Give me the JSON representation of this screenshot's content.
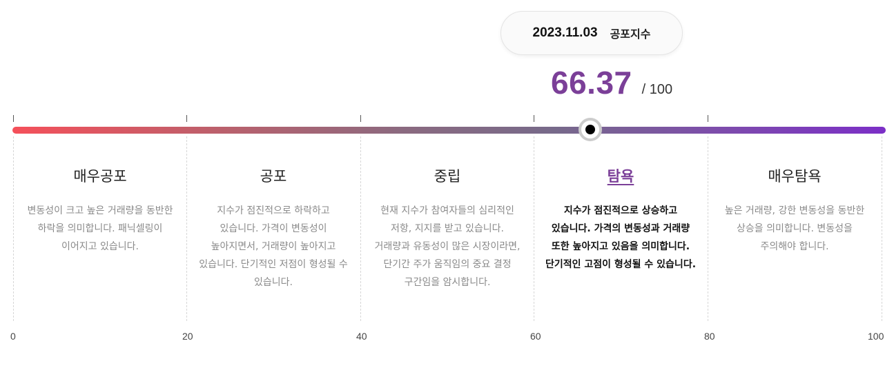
{
  "tooltip": {
    "date": "2023.11.03",
    "label": "공포지수"
  },
  "gauge": {
    "value": 66.37,
    "value_text": "66.37",
    "max_text": "/ 100",
    "marker_color": "#000000",
    "value_color": "#7b3f98",
    "gradient_start": "#f5505a",
    "gradient_end": "#7c2fc7"
  },
  "zones": [
    {
      "title": "매우공포",
      "desc": "변동성이 크고 높은 거래량을 동반한 하락을 의미합니다. 패닉셀링이 이어지고 있습니다.",
      "active": false
    },
    {
      "title": "공포",
      "desc": "지수가 점진적으로 하락하고 있습니다. 가격이 변동성이 높아지면서, 거래량이 높아지고 있습니다. 단기적인 저점이 형성될 수 있습니다.",
      "active": false
    },
    {
      "title": "중립",
      "desc": "현재 지수가 참여자들의 심리적인 저항, 지지를 받고 있습니다. 거래량과 유동성이 많은 시장이라면, 단기간 주가 움직임의 중요 결정 구간임을 암시합니다.",
      "active": false
    },
    {
      "title": "탐욕",
      "desc": "지수가 점진적으로 상승하고 있습니다. 가격의 변동성과 거래량 또한 높아지고 있음을 의미합니다. 단기적인 고점이 형성될 수 있습니다.",
      "active": true
    },
    {
      "title": "매우탐욕",
      "desc": "높은 거래량, 강한 변동성을 동반한 상승을 의미합니다. 변동성을 주의해야 합니다.",
      "active": false
    }
  ],
  "scale": {
    "labels": [
      "0",
      "20",
      "40",
      "60",
      "80",
      "100"
    ]
  }
}
